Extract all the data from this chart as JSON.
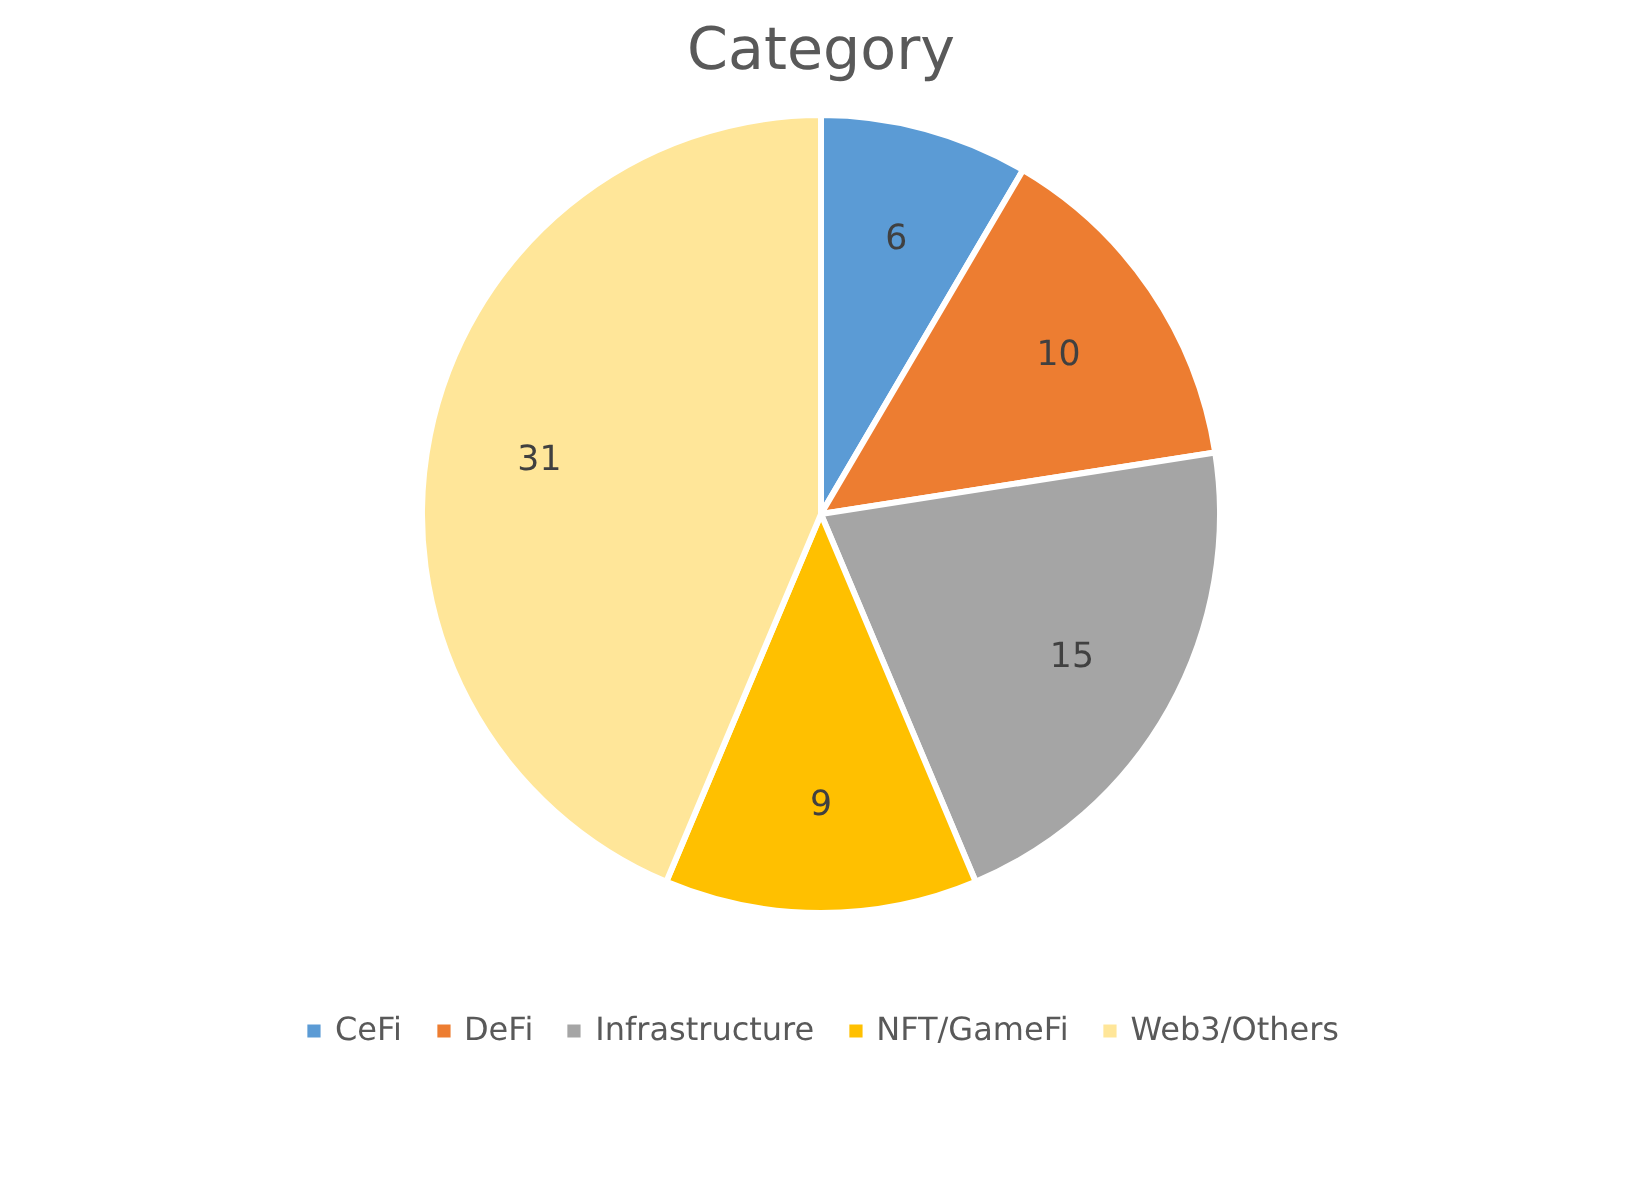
{
  "chart_data": {
    "type": "pie",
    "title": "Category",
    "categories": [
      "CeFi",
      "DeFi",
      "Infrastructure",
      "NFT/GameFi",
      "Web3/Others"
    ],
    "values": [
      6,
      10,
      15,
      9,
      31
    ],
    "colors": [
      "#5b9bd5",
      "#ed7d31",
      "#a5a5a5",
      "#ffc000",
      "#ffe699"
    ],
    "data_labels": true,
    "legend": "bottom"
  }
}
